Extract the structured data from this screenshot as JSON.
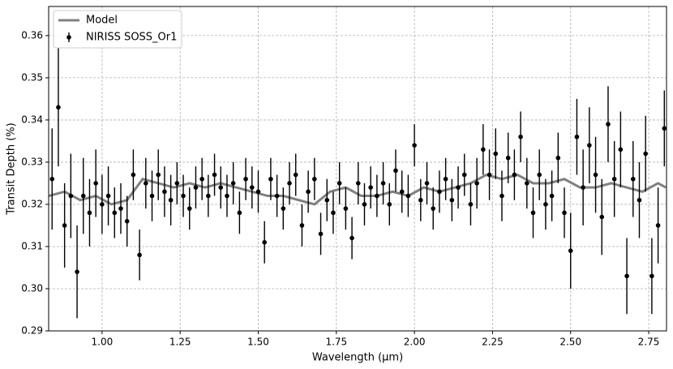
{
  "chart_data": {
    "type": "errorbar",
    "xlabel": "Wavelength (μm)",
    "ylabel": "Transit Depth (%)",
    "xlim": [
      0.829,
      2.807
    ],
    "ylim": [
      0.29,
      0.3669
    ],
    "xticks": [
      {
        "value": 1.0,
        "label": "1.00"
      },
      1.25,
      {
        "value": 1.5,
        "label": "1.50"
      },
      1.75,
      {
        "value": 2.0,
        "label": "2.00"
      },
      2.25,
      {
        "value": 2.5,
        "label": "2.50"
      },
      2.75
    ],
    "yticks": [
      0.29,
      {
        "value": 0.3,
        "label": "0.30"
      },
      0.31,
      0.32,
      0.33,
      0.34,
      0.35,
      0.36
    ],
    "grid": true,
    "legend": "upper left",
    "series": [
      {
        "name": "Model",
        "color": "#808080",
        "kind": "line",
        "x": [
          0.83,
          0.88,
          0.93,
          0.98,
          1.03,
          1.08,
          1.13,
          1.18,
          1.23,
          1.28,
          1.33,
          1.38,
          1.43,
          1.48,
          1.53,
          1.58,
          1.63,
          1.68,
          1.73,
          1.78,
          1.83,
          1.88,
          1.93,
          1.98,
          2.03,
          2.08,
          2.13,
          2.18,
          2.23,
          2.28,
          2.33,
          2.38,
          2.43,
          2.48,
          2.53,
          2.58,
          2.63,
          2.68,
          2.73,
          2.78,
          2.805
        ],
        "values": [
          0.322,
          0.323,
          0.321,
          0.322,
          0.32,
          0.321,
          0.326,
          0.325,
          0.324,
          0.325,
          0.324,
          0.325,
          0.324,
          0.323,
          0.322,
          0.322,
          0.321,
          0.32,
          0.323,
          0.324,
          0.322,
          0.322,
          0.323,
          0.322,
          0.324,
          0.323,
          0.324,
          0.325,
          0.327,
          0.326,
          0.327,
          0.325,
          0.325,
          0.326,
          0.324,
          0.324,
          0.325,
          0.324,
          0.323,
          0.325,
          0.324
        ]
      },
      {
        "name": "NIRISS SOSS_Or1",
        "color": "#000000",
        "kind": "errorbar",
        "x": [
          0.84,
          0.86,
          0.88,
          0.9,
          0.92,
          0.94,
          0.96,
          0.98,
          1.0,
          1.02,
          1.04,
          1.06,
          1.08,
          1.1,
          1.12,
          1.14,
          1.16,
          1.18,
          1.2,
          1.22,
          1.24,
          1.26,
          1.28,
          1.3,
          1.32,
          1.34,
          1.36,
          1.38,
          1.4,
          1.42,
          1.44,
          1.46,
          1.48,
          1.5,
          1.52,
          1.54,
          1.56,
          1.58,
          1.6,
          1.62,
          1.64,
          1.66,
          1.68,
          1.7,
          1.72,
          1.74,
          1.76,
          1.78,
          1.8,
          1.82,
          1.84,
          1.86,
          1.88,
          1.9,
          1.92,
          1.94,
          1.96,
          1.98,
          2.0,
          2.02,
          2.04,
          2.06,
          2.08,
          2.1,
          2.12,
          2.14,
          2.16,
          2.18,
          2.2,
          2.22,
          2.24,
          2.26,
          2.28,
          2.3,
          2.32,
          2.34,
          2.36,
          2.38,
          2.4,
          2.42,
          2.44,
          2.46,
          2.48,
          2.5,
          2.52,
          2.54,
          2.56,
          2.58,
          2.6,
          2.62,
          2.64,
          2.66,
          2.68,
          2.7,
          2.72,
          2.74,
          2.76,
          2.78,
          2.8
        ],
        "values": [
          0.326,
          0.343,
          0.315,
          0.322,
          0.304,
          0.322,
          0.318,
          0.325,
          0.32,
          0.322,
          0.318,
          0.319,
          0.316,
          0.327,
          0.308,
          0.325,
          0.322,
          0.327,
          0.323,
          0.321,
          0.325,
          0.322,
          0.319,
          0.324,
          0.326,
          0.322,
          0.327,
          0.324,
          0.322,
          0.325,
          0.318,
          0.326,
          0.324,
          0.323,
          0.311,
          0.326,
          0.322,
          0.319,
          0.325,
          0.327,
          0.315,
          0.323,
          0.326,
          0.313,
          0.321,
          0.318,
          0.325,
          0.319,
          0.312,
          0.325,
          0.32,
          0.324,
          0.322,
          0.325,
          0.32,
          0.328,
          0.323,
          0.322,
          0.334,
          0.321,
          0.325,
          0.319,
          0.323,
          0.326,
          0.321,
          0.324,
          0.327,
          0.32,
          0.325,
          0.333,
          0.327,
          0.332,
          0.322,
          0.331,
          0.327,
          0.336,
          0.325,
          0.318,
          0.327,
          0.32,
          0.322,
          0.331,
          0.318,
          0.309,
          0.336,
          0.324,
          0.334,
          0.327,
          0.317,
          0.339,
          0.326,
          0.333,
          0.303,
          0.326,
          0.321,
          0.332,
          0.303,
          0.315,
          0.338
        ],
        "errors": [
          0.012,
          0.014,
          0.01,
          0.01,
          0.011,
          0.009,
          0.008,
          0.008,
          0.007,
          0.007,
          0.006,
          0.006,
          0.006,
          0.006,
          0.006,
          0.006,
          0.006,
          0.006,
          0.006,
          0.006,
          0.005,
          0.005,
          0.005,
          0.005,
          0.005,
          0.005,
          0.005,
          0.005,
          0.005,
          0.005,
          0.005,
          0.005,
          0.005,
          0.005,
          0.005,
          0.005,
          0.005,
          0.005,
          0.005,
          0.005,
          0.005,
          0.005,
          0.005,
          0.005,
          0.005,
          0.005,
          0.005,
          0.005,
          0.005,
          0.005,
          0.005,
          0.005,
          0.005,
          0.005,
          0.005,
          0.005,
          0.005,
          0.005,
          0.005,
          0.005,
          0.005,
          0.005,
          0.005,
          0.005,
          0.005,
          0.005,
          0.005,
          0.005,
          0.006,
          0.006,
          0.006,
          0.006,
          0.006,
          0.006,
          0.006,
          0.006,
          0.006,
          0.006,
          0.006,
          0.006,
          0.006,
          0.006,
          0.006,
          0.009,
          0.009,
          0.009,
          0.009,
          0.009,
          0.009,
          0.009,
          0.009,
          0.009,
          0.009,
          0.009,
          0.009,
          0.009,
          0.009,
          0.009,
          0.009
        ]
      }
    ]
  }
}
